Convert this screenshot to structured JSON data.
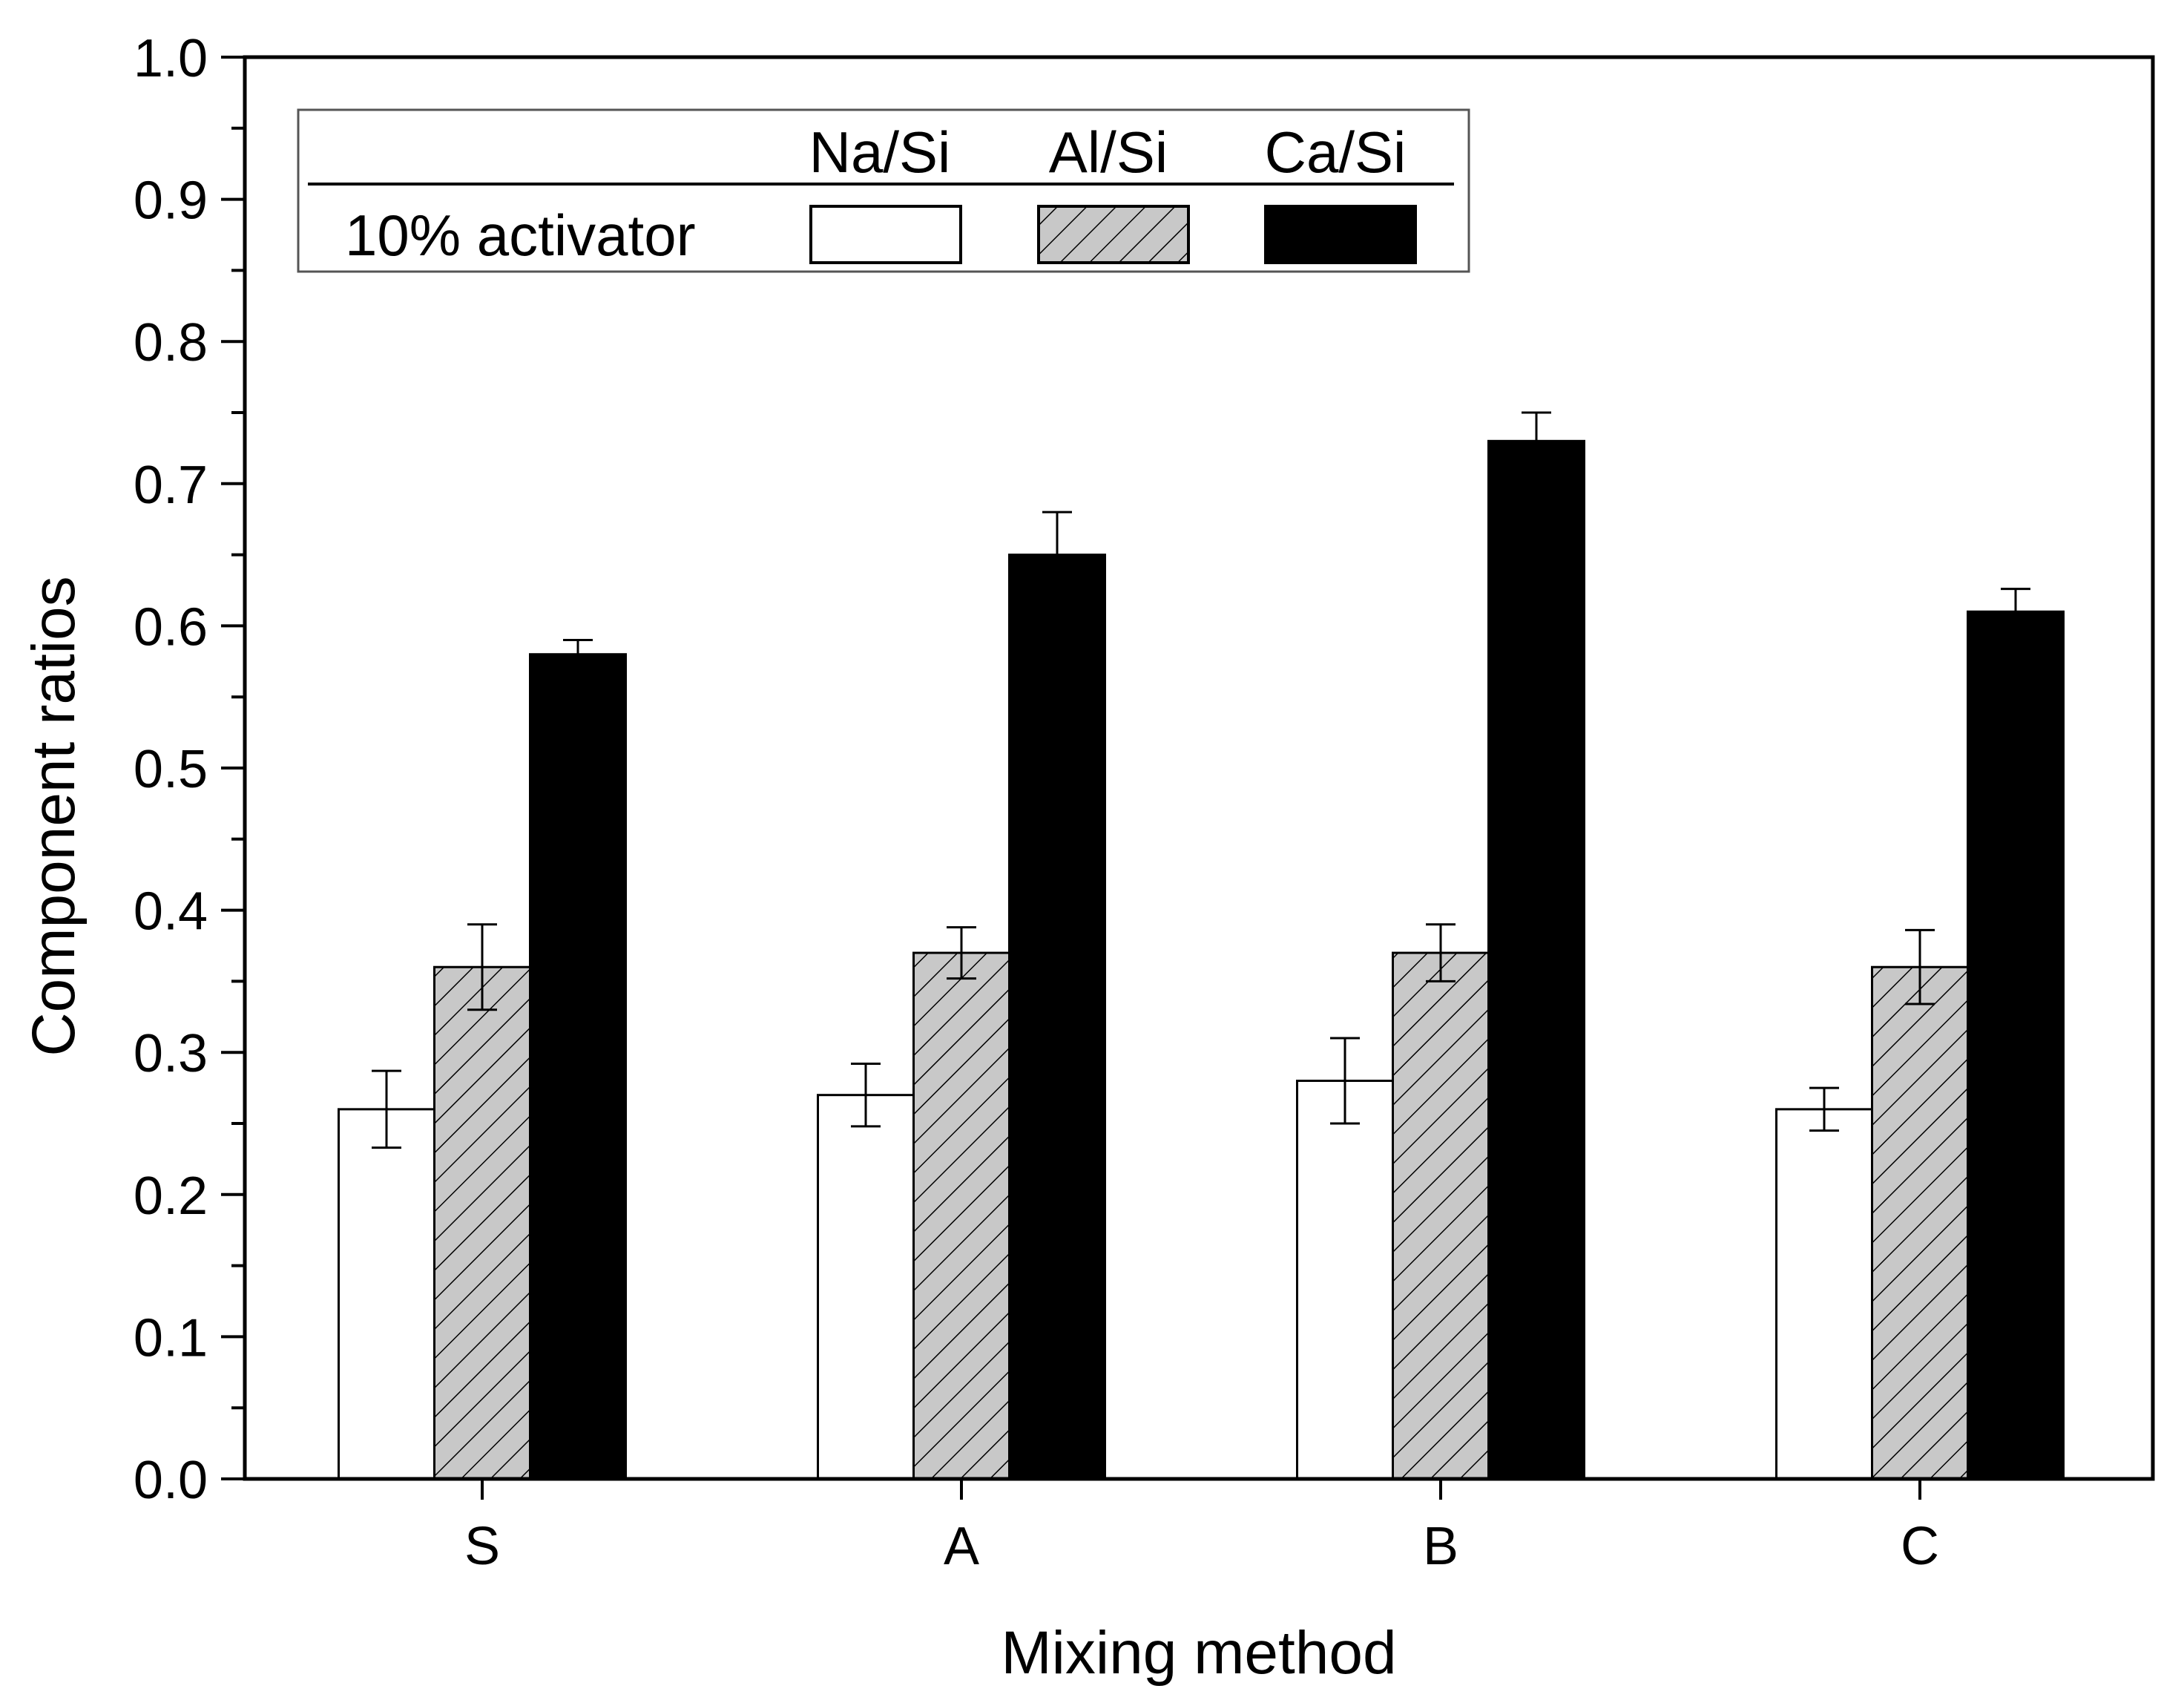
{
  "chart_data": {
    "type": "bar",
    "title": "",
    "xlabel": "Mixing method",
    "ylabel": "Component ratios",
    "categories": [
      "S",
      "A",
      "B",
      "C"
    ],
    "ylim": [
      0.0,
      1.0
    ],
    "yticks": [
      "0.0",
      "0.1",
      "0.2",
      "0.3",
      "0.4",
      "0.5",
      "0.6",
      "0.7",
      "0.8",
      "0.9",
      "1.0"
    ],
    "grid": false,
    "legend": {
      "placement": "top-left",
      "row_label": "10% activator",
      "headers": [
        "Na/Si",
        "Al/Si",
        "Ca/Si"
      ]
    },
    "series": [
      {
        "name": "Na/Si",
        "fill": "#ffffff",
        "pattern": "none",
        "values": [
          0.26,
          0.27,
          0.28,
          0.26
        ],
        "errors": [
          0.027,
          0.022,
          0.03,
          0.015
        ]
      },
      {
        "name": "Al/Si",
        "fill": "#c8c8c8",
        "pattern": "hatch",
        "values": [
          0.36,
          0.37,
          0.37,
          0.36
        ],
        "errors": [
          0.03,
          0.018,
          0.02,
          0.026
        ]
      },
      {
        "name": "Ca/Si",
        "fill": "#000000",
        "pattern": "none",
        "values": [
          0.58,
          0.65,
          0.73,
          0.61
        ],
        "errors": [
          0.01,
          0.03,
          0.02,
          0.016
        ]
      }
    ]
  }
}
